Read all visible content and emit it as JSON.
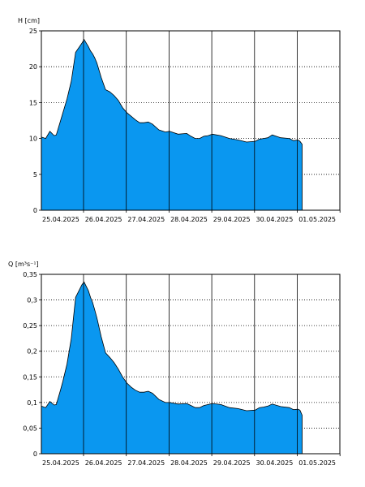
{
  "chart_data": [
    {
      "type": "area",
      "ylabel": "H [cm]",
      "ylim": [
        0,
        25
      ],
      "yticks": [
        "0",
        "5",
        "10",
        "15",
        "20",
        "25"
      ],
      "ytick_values": [
        0,
        5,
        10,
        15,
        20,
        25
      ],
      "xticks": [
        "25.04.2025",
        "26.04.2025",
        "27.04.2025",
        "28.04.2025",
        "29.04.2025",
        "30.04.2025",
        "01.05.2025"
      ],
      "fill_color": "#0a97f0",
      "grid": "dotted horizontal, solid vertical at day boundaries",
      "series": [
        {
          "x": [
            0,
            0.1,
            0.2,
            0.3,
            0.35,
            0.45,
            0.5,
            0.6,
            0.7,
            0.8,
            0.95,
            1.0,
            1.1,
            1.15,
            1.2,
            1.25,
            1.3,
            1.4,
            1.5,
            1.6,
            1.7,
            1.8,
            1.9,
            2.0,
            2.1,
            2.2,
            2.3,
            2.4,
            2.5,
            2.6,
            2.75,
            2.9,
            3.0,
            3.2,
            3.4,
            3.5,
            3.6,
            3.7,
            3.8,
            3.9,
            4.0,
            4.2,
            4.4,
            4.6,
            4.8,
            5.0,
            5.1,
            5.2,
            5.3,
            5.4,
            5.6,
            5.8,
            5.9,
            6.0,
            6.05,
            6.1
          ],
          "values": [
            10.2,
            10.0,
            11.0,
            10.4,
            10.5,
            12.5,
            13.5,
            15.5,
            18.0,
            22.0,
            23.3,
            23.8,
            22.8,
            22.2,
            21.8,
            21.2,
            20.5,
            18.5,
            16.8,
            16.5,
            16.0,
            15.3,
            14.3,
            13.6,
            13.1,
            12.6,
            12.2,
            12.2,
            12.3,
            12.0,
            11.2,
            10.9,
            11.0,
            10.6,
            10.7,
            10.3,
            10.0,
            10.0,
            10.3,
            10.4,
            10.6,
            10.4,
            10.0,
            9.8,
            9.5,
            9.6,
            9.9,
            10.0,
            10.1,
            10.5,
            10.1,
            10.0,
            9.7,
            9.8,
            9.6,
            9.2
          ]
        }
      ]
    },
    {
      "type": "area",
      "ylabel": "Q [m³s⁻¹]",
      "ylim": [
        0,
        0.35
      ],
      "yticks": [
        "0",
        "0,05",
        "0,1",
        "0,15",
        "0,2",
        "0,25",
        "0,3",
        "0,35"
      ],
      "ytick_values": [
        0,
        0.05,
        0.1,
        0.15,
        0.2,
        0.25,
        0.3,
        0.35
      ],
      "xticks": [
        "25.04.2025",
        "26.04.2025",
        "27.04.2025",
        "28.04.2025",
        "29.04.2025",
        "30.04.2025",
        "01.05.2025"
      ],
      "fill_color": "#0a97f0",
      "grid": "dotted horizontal, solid vertical at day boundaries",
      "series": [
        {
          "x": [
            0,
            0.1,
            0.2,
            0.3,
            0.35,
            0.45,
            0.5,
            0.6,
            0.7,
            0.8,
            0.95,
            1.0,
            1.1,
            1.15,
            1.2,
            1.25,
            1.3,
            1.4,
            1.5,
            1.6,
            1.7,
            1.8,
            1.9,
            2.0,
            2.1,
            2.2,
            2.3,
            2.4,
            2.5,
            2.6,
            2.75,
            2.9,
            3.0,
            3.2,
            3.4,
            3.5,
            3.6,
            3.7,
            3.8,
            3.9,
            4.0,
            4.2,
            4.4,
            4.6,
            4.8,
            5.0,
            5.1,
            5.2,
            5.3,
            5.4,
            5.6,
            5.8,
            5.9,
            6.0,
            6.05,
            6.1
          ],
          "values": [
            0.093,
            0.09,
            0.102,
            0.095,
            0.096,
            0.125,
            0.14,
            0.175,
            0.225,
            0.305,
            0.33,
            0.335,
            0.318,
            0.305,
            0.295,
            0.28,
            0.265,
            0.228,
            0.197,
            0.188,
            0.178,
            0.165,
            0.15,
            0.138,
            0.13,
            0.124,
            0.12,
            0.12,
            0.122,
            0.118,
            0.106,
            0.1,
            0.1,
            0.097,
            0.098,
            0.094,
            0.09,
            0.09,
            0.094,
            0.096,
            0.098,
            0.096,
            0.09,
            0.088,
            0.084,
            0.085,
            0.09,
            0.091,
            0.093,
            0.097,
            0.092,
            0.09,
            0.086,
            0.087,
            0.085,
            0.075
          ]
        }
      ]
    }
  ]
}
